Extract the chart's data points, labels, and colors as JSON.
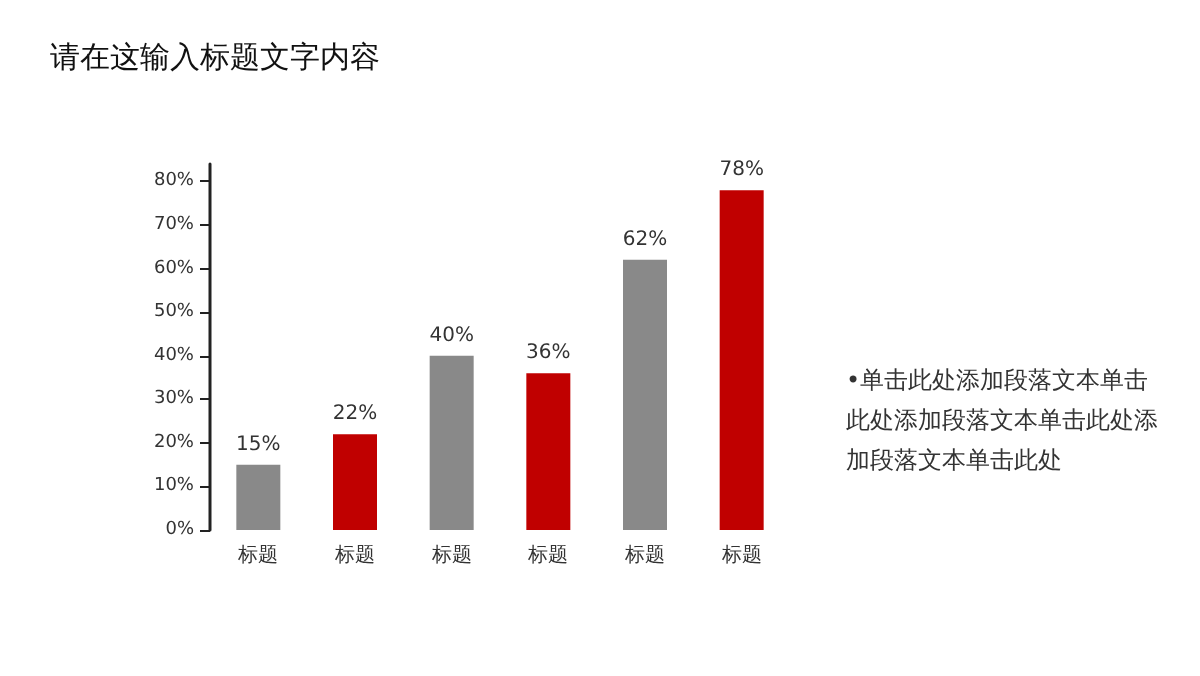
{
  "chart_data": {
    "type": "bar",
    "title": "请在这输入标题文字内容",
    "categories": [
      "标题",
      "标题",
      "标题",
      "标题",
      "标题",
      "标题"
    ],
    "values": [
      15,
      22,
      40,
      36,
      62,
      78
    ],
    "colors": [
      "#898989",
      "#c00000",
      "#898989",
      "#c00000",
      "#898989",
      "#c00000"
    ],
    "value_labels": [
      "15%",
      "22%",
      "40%",
      "36%",
      "62%",
      "78%"
    ],
    "ylim": [
      0,
      84
    ],
    "yticks": [
      {
        "value": 0,
        "label": "0%"
      },
      {
        "value": 10,
        "label": "10%"
      },
      {
        "value": 20,
        "label": "20%"
      },
      {
        "value": 30,
        "label": "30%"
      },
      {
        "value": 40,
        "label": "40%"
      },
      {
        "value": 50,
        "label": "50%"
      },
      {
        "value": 60,
        "label": "60%"
      },
      {
        "value": 70,
        "label": "70%"
      },
      {
        "value": 80,
        "label": "80%"
      }
    ],
    "annotations": [
      "•单击此处添加段落文本单击此处添加段落文本单击此处添加段落文本单击此处"
    ],
    "grid": false
  }
}
